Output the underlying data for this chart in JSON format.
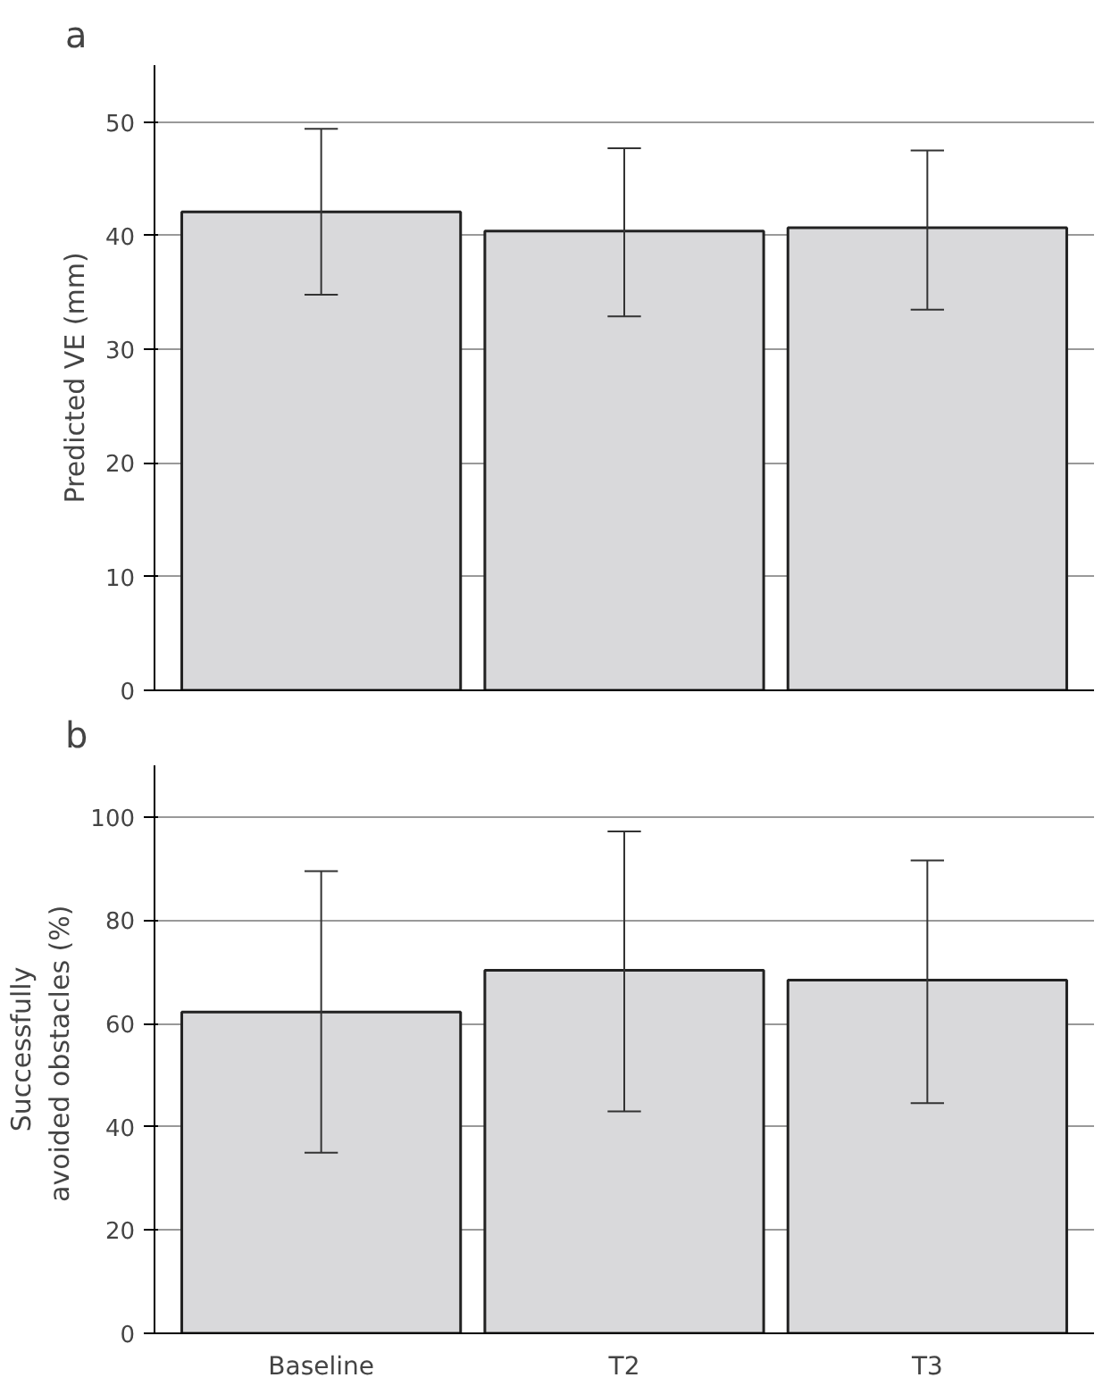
{
  "chart_data": [
    {
      "type": "bar",
      "title": "a",
      "ylabel": "Predicted VE (mm)",
      "categories": [
        null,
        null,
        null
      ],
      "values": [
        42.1,
        40.4,
        40.7
      ],
      "color": "#d9d9db",
      "errors": [
        [
          34.8,
          49.4
        ],
        [
          32.9,
          47.7
        ],
        [
          33.5,
          47.5
        ]
      ],
      "ylim": [
        0,
        55
      ],
      "yticks": [
        0,
        10,
        20,
        30,
        40,
        50
      ],
      "grid": "y",
      "tick_labels": "y"
    },
    {
      "type": "bar",
      "title": "b",
      "ylabel": "Successfully\navoided  obstacles (%)",
      "categories": [
        "Baseline",
        "T2",
        "T3"
      ],
      "values": [
        62.2,
        70.3,
        68.4
      ],
      "color": "#d9d9db",
      "errors": [
        [
          35.0,
          89.5
        ],
        [
          43.0,
          97.2
        ],
        [
          44.6,
          91.6
        ]
      ],
      "ylim": [
        0,
        110
      ],
      "yticks": [
        0,
        20,
        40,
        60,
        80,
        100
      ],
      "grid": "y"
    }
  ]
}
